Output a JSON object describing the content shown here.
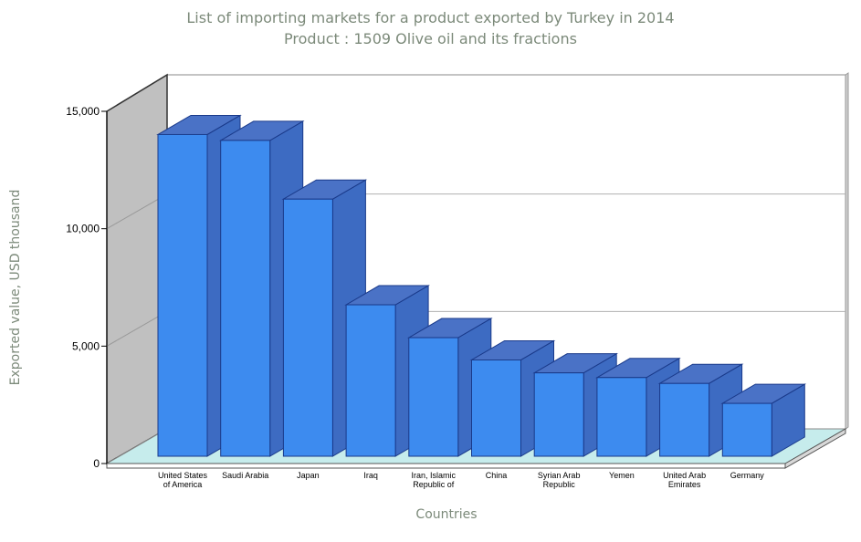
{
  "chart_data": {
    "type": "bar",
    "title": "List of importing markets for a product exported by Turkey in 2014",
    "subtitle": "Product : 1509 Olive oil and its fractions",
    "xlabel": "Countries",
    "ylabel": "Exported value, USD thousand",
    "ylim": [
      0,
      15000
    ],
    "y_ticks": [
      "0",
      "5,000",
      "10,000",
      "15,000"
    ],
    "categories": [
      [
        "United States",
        "of America"
      ],
      [
        "Saudi Arabia"
      ],
      [
        "Japan"
      ],
      [
        "Iraq"
      ],
      [
        "Iran, Islamic",
        "Republic of"
      ],
      [
        "China"
      ],
      [
        "Syrian Arab",
        "Republic"
      ],
      [
        "Yemen"
      ],
      [
        "United Arab",
        "Emirates"
      ],
      [
        "Germany"
      ]
    ],
    "values": [
      13700,
      13450,
      10950,
      6450,
      5050,
      4100,
      3550,
      3350,
      3100,
      2250
    ],
    "grid": true,
    "style": "3d",
    "colors": {
      "bar_front": "#3d8bef",
      "bar_side": "#3d6bc2",
      "bar_top": "#4a72c6",
      "bar_edge": "#1a3a8a",
      "floor": "#c6ecec",
      "wall_left": "#c0c0c0",
      "gridline": "#b0b0b0"
    }
  }
}
